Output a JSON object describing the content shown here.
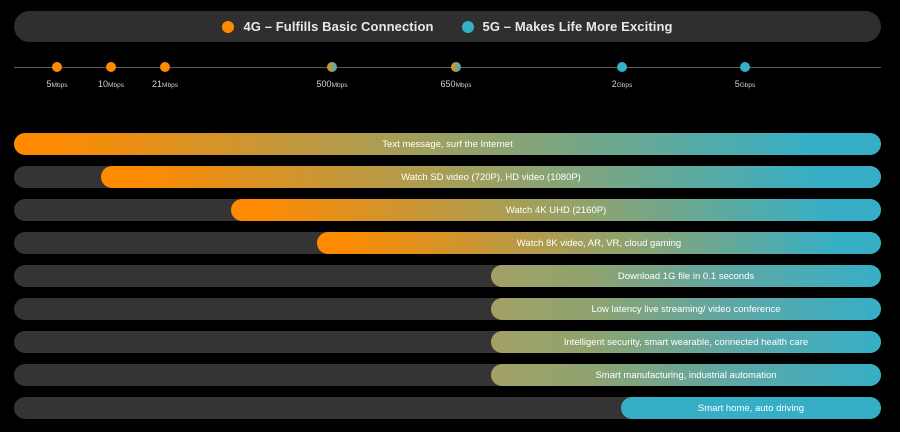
{
  "legend": [
    {
      "label": "4G – Fulfills Basic Connection",
      "color": "#ff8a00"
    },
    {
      "label": "5G – Makes Life More Exciting",
      "color": "#32b1c7"
    }
  ],
  "colors": {
    "orange": "#ff8a00",
    "teal": "#36afc6",
    "track": "#343434",
    "mid": "#8fa36e"
  },
  "ticks": [
    {
      "label_num": "5",
      "label_unit": "Mbps",
      "color": "#ff8a00"
    },
    {
      "label_num": "10",
      "label_unit": "Mbps",
      "color": "#ff8a00"
    },
    {
      "label_num": "21",
      "label_unit": "Mbps",
      "color": "#ff8a00"
    },
    {
      "label_num": "500",
      "label_unit": "Mbps",
      "color": "mixed"
    },
    {
      "label_num": "650",
      "label_unit": "Mbps",
      "color": "mixed"
    },
    {
      "label_num": "2",
      "label_unit": "Gbps",
      "color": "#32b1c7"
    },
    {
      "label_num": "5",
      "label_unit": "Gbps",
      "color": "#32b1c7"
    }
  ],
  "rows": [
    {
      "label": "Text message, surf the Internet",
      "start_tick": 0,
      "gradient": "orange-to-teal"
    },
    {
      "label": "Watch SD video (720P), HD video (1080P)",
      "start_tick": 1,
      "gradient": "orange-to-teal"
    },
    {
      "label": "Watch 4K UHD (2160P)",
      "start_tick": 2,
      "gradient": "orange-to-teal"
    },
    {
      "label": "Watch 8K video, AR, VR, cloud gaming",
      "start_tick": 3,
      "gradient": "orange-to-teal"
    },
    {
      "label": "Download 1G file in 0.1 seconds",
      "start_tick": 4,
      "gradient": "olive-to-teal"
    },
    {
      "label": "Low latency live streaming/ video conference",
      "start_tick": 4,
      "gradient": "olive-to-teal"
    },
    {
      "label": "Intelligent security, smart wearable, connected health care",
      "start_tick": 4,
      "gradient": "olive-to-teal"
    },
    {
      "label": "Smart manufacturing, industrial automation",
      "start_tick": 4,
      "gradient": "olive-to-teal"
    },
    {
      "label": "Smart home, auto driving",
      "start_tick": 5,
      "gradient": "teal"
    }
  ]
}
